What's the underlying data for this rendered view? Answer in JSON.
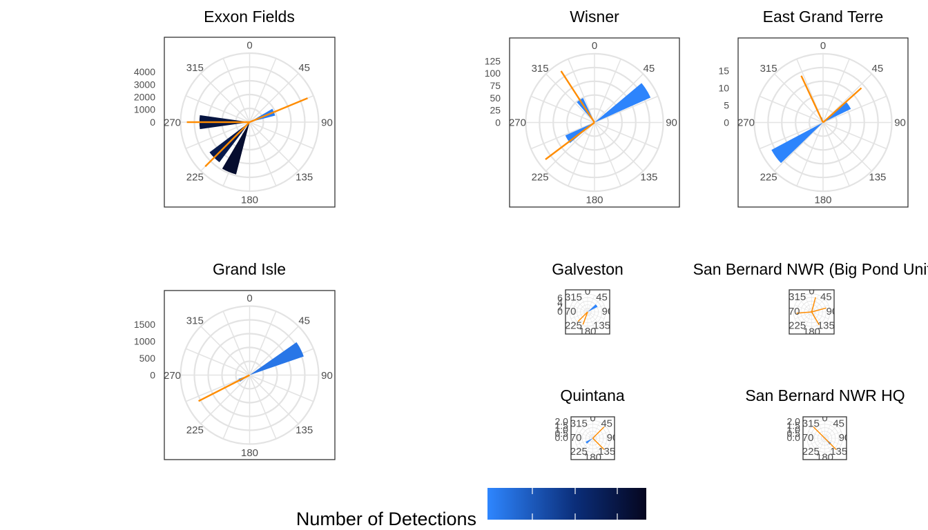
{
  "chart_data": {
    "type": "polar-bar",
    "colors": {
      "low": "#2E86FF",
      "high": "#05061F",
      "line": "#FF8C00",
      "grid": "#E3E3E3",
      "axis_text": "#4d4d4d"
    },
    "angle_ticks": [
      "0",
      "45",
      "90",
      "135",
      "180",
      "225",
      "270",
      "315"
    ],
    "legend": {
      "title": "Number of Detections",
      "min": 0,
      "max": 9000
    },
    "panels": [
      {
        "title": "Exxon Fields",
        "rmax": 5500,
        "rticks": [
          "0",
          "1000",
          "2000",
          "3000",
          "4000"
        ],
        "bars": [
          {
            "angle": 67.5,
            "value": 2100,
            "count": 600
          },
          {
            "angle": 270,
            "value": 4000,
            "count": 7500
          },
          {
            "angle": 225,
            "value": 4000,
            "count": 7000
          },
          {
            "angle": 202.5,
            "value": 4300,
            "count": 8300
          }
        ],
        "line": {
          "angles": [
            67.5,
            270,
            225
          ],
          "value": 5000
        }
      },
      {
        "title": "Wisner",
        "rmax": 140,
        "rticks": [
          "0",
          "25",
          "50",
          "75",
          "100",
          "125"
        ],
        "bars": [
          {
            "angle": 58,
            "value": 125,
            "count": 100
          },
          {
            "angle": 327,
            "value": 55,
            "count": 100
          },
          {
            "angle": 238,
            "value": 65,
            "count": 100
          }
        ],
        "line": {
          "angles": [
            327,
            233
          ],
          "value": 125
        }
      },
      {
        "title": "East Grand Terre",
        "rmax": 20,
        "rticks": [
          "0",
          "5",
          "10",
          "15"
        ],
        "bars": [
          {
            "angle": 56,
            "value": 9,
            "count": 100
          },
          {
            "angle": 342,
            "value": 1.5,
            "count": 100
          },
          {
            "angle": 234,
            "value": 17,
            "count": 100
          }
        ],
        "line": {
          "angles": [
            48,
            335
          ],
          "value": 15
        }
      },
      {
        "title": "Grand Isle",
        "rmax": 2050,
        "rticks": [
          "0",
          "500",
          "1000",
          "1500"
        ],
        "bars": [
          {
            "angle": 63,
            "value": 1700,
            "count": 900
          },
          {
            "angle": 243,
            "value": 350,
            "count": 100
          }
        ],
        "line": {
          "angles": [
            243
          ],
          "value": 1700
        }
      },
      {
        "title": "Galveston",
        "rmax": 8,
        "rticks": [
          "0",
          "2",
          "4",
          "6"
        ],
        "bars": [
          {
            "angle": 55,
            "value": 5,
            "count": 100
          }
        ],
        "line": {
          "angles": [
            200,
            225
          ],
          "value": 6
        }
      },
      {
        "title": "San Bernard NWR (Big Pond Unit)",
        "rmax": 3,
        "rticks": [],
        "bars": [],
        "line": {
          "angles": [
            15,
            75,
            150,
            265
          ],
          "value": 2.5
        }
      },
      {
        "title": "Quintana",
        "rmax": 2.2,
        "rticks": [
          "0.0",
          "0.5",
          "1.0",
          "1.5",
          "2.0"
        ],
        "bars": [
          {
            "angle": 235,
            "value": 1.0,
            "count": 100
          }
        ],
        "line": {
          "angles": [
            45,
            135
          ],
          "value": 2.0
        }
      },
      {
        "title": "San Bernard NWR HQ",
        "rmax": 2.2,
        "rticks": [
          "0.0",
          "0.5",
          "1.0",
          "1.5",
          "2.0"
        ],
        "bars": [
          {
            "angle": 135,
            "value": 1.0,
            "count": 100
          }
        ],
        "line": {
          "angles": [
            135,
            315
          ],
          "value": 2.0
        }
      }
    ]
  }
}
